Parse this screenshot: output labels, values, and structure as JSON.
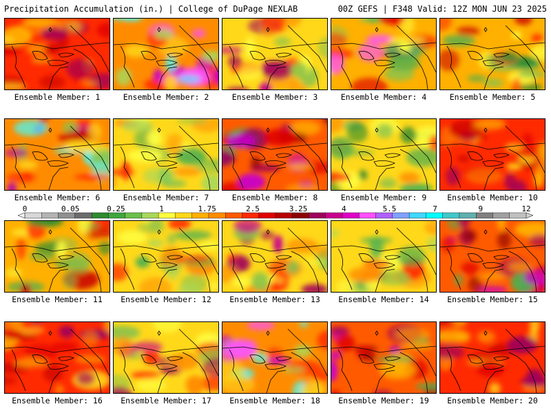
{
  "header": {
    "left": "Precipitation Accumulation (in.) | College of DuPage NEXLAB",
    "right": "00Z GEFS | F348 Valid: 12Z MON JUN 23 2025"
  },
  "member_label_prefix": "Ensemble Member: ",
  "members": [
    {
      "number": "1",
      "field": "red-heavy"
    },
    {
      "number": "2",
      "field": "magenta-band"
    },
    {
      "number": "3",
      "field": "mixed"
    },
    {
      "number": "4",
      "field": "magenta-south"
    },
    {
      "number": "5",
      "field": "green-east"
    },
    {
      "number": "6",
      "field": "cyan-southwest"
    },
    {
      "number": "7",
      "field": "yellow-green"
    },
    {
      "number": "8",
      "field": "purple-west"
    },
    {
      "number": "9",
      "field": "green-heavy"
    },
    {
      "number": "10",
      "field": "red-heavy"
    },
    {
      "number": "11",
      "field": "green-east"
    },
    {
      "number": "12",
      "field": "yellow-green"
    },
    {
      "number": "13",
      "field": "mixed"
    },
    {
      "number": "14",
      "field": "yellow-green"
    },
    {
      "number": "15",
      "field": "purple-west"
    },
    {
      "number": "16",
      "field": "red-heavy"
    },
    {
      "number": "17",
      "field": "mixed"
    },
    {
      "number": "18",
      "field": "magenta-band"
    },
    {
      "number": "19",
      "field": "purple-west"
    },
    {
      "number": "20",
      "field": "red-heavy"
    }
  ],
  "colorbar": {
    "tick_labels": [
      "0",
      "0.05",
      "0.25",
      "1",
      "1.75",
      "2.5",
      "3.25",
      "4",
      "5.5",
      "7",
      "9",
      "12"
    ],
    "colors": [
      "#d8d8d8",
      "#b4b4b4",
      "#909090",
      "#6c6c6c",
      "#2f8a2f",
      "#3fa63f",
      "#6cc04a",
      "#a8d85a",
      "#ffff40",
      "#ffd81a",
      "#ffb000",
      "#ff8c00",
      "#ff5a00",
      "#ff2a00",
      "#e00000",
      "#b80000",
      "#8c0000",
      "#a0005a",
      "#c8008c",
      "#e000c8",
      "#ff50ff",
      "#b060ff",
      "#7fa0ff",
      "#40d8ff",
      "#00ffff",
      "#40c8c8",
      "#60b0b0",
      "#808080",
      "#a0a0a0",
      "#c0c0c0"
    ]
  }
}
